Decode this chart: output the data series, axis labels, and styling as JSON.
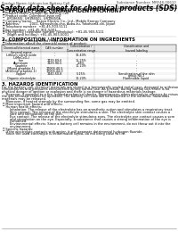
{
  "header_left": "Product Name: Lithium Ion Battery Cell",
  "header_right": "Substance Number: MRF48-00610\nEstablished / Revision: Dec.7.2010",
  "title": "Safety data sheet for chemical products (SDS)",
  "section1_title": "1. PRODUCT AND COMPANY IDENTIFICATION",
  "section1_lines": [
    " ・ Product name: Lithium Ion Battery Cell",
    " ・ Product code: Cylindrical-type cell",
    "     UR18650J, UR18650L, UR18650A",
    " ・ Company name:    Sanyo Electric Co., Ltd., Mobile Energy Company",
    " ・ Address:          2001, Kamoshida-cho, Aoba-ku, Yokohama-shi, Japan",
    " ・ Telephone number:  +81-45-903-5111",
    " ・ Fax number:  +81-45-901-5001",
    " ・ Emergency telephone number (Weekday): +81-45-903-5111",
    "     (Night and holiday): +81-45-903-5001"
  ],
  "section2_title": "2. COMPOSITION / INFORMATION ON INGREDIENTS",
  "section2_sub": " ・ Substance or preparation: Preparation",
  "section2_sub2": " ・ Information about the chemical nature of product:",
  "table_headers": [
    "Chemical/chemical name",
    "CAS number",
    "Concentration /\nConcentration range",
    "Classification and\nhazard labeling"
  ],
  "section3_title": "3. HAZARDS IDENTIFICATION",
  "section3_lines": [
    "For the battery cell, chemical materials are stored in a hermetically sealed metal case, designed to withstand",
    "temperatures and pressures encountered during normal use. As a result, during normal use, there is no",
    "physical danger of ignition or explosion and there is no danger of hazardous materials leakage.",
    "    However, if exposed to a fire, added mechanical shocks, decomposes, when electrolyte releases by misuse,",
    "the gas released cannot be operated. The battery cell case will be breached of the extreme, hazardous",
    "materials may be released.",
    "    Moreover, if heated strongly by the surrounding fire, some gas may be emitted."
  ],
  "most_important": " ・ Most important hazard and effects:",
  "health_header": "    Human health effects:",
  "health_lines": [
    "        Inhalation: The release of the electrolyte has an anesthetic action and stimulates a respiratory tract.",
    "        Skin contact: The release of the electrolyte stimulates a skin. The electrolyte skin contact causes a",
    "        sore and stimulation on the skin.",
    "        Eye contact: The release of the electrolyte stimulates eyes. The electrolyte eye contact causes a sore",
    "        and stimulation on the eye. Especially, a substance that causes a strong inflammation of the eye is",
    "        contained.",
    "        Environmental effects: Since a battery cell remains in the environment, do not throw out it into the",
    "        environment."
  ],
  "specific_header": " ・ Specific hazards:",
  "specific_lines": [
    "    If the electrolyte contacts with water, it will generate detrimental hydrogen fluoride.",
    "    Since the used electrolyte is inflammable liquid, do not bring close to fire."
  ],
  "table_rows": [
    [
      "Several name",
      "-",
      "",
      ""
    ],
    [
      "Lithium cobalt oxide",
      "-",
      "30-40%",
      "-"
    ],
    [
      "(LiMnCoO₂)",
      "",
      "",
      ""
    ],
    [
      "Iron",
      "7439-89-6",
      "15-25%",
      "-"
    ],
    [
      "Aluminum",
      "7429-90-5",
      "2-8%",
      "-"
    ],
    [
      "Graphite",
      "",
      "10-20%",
      "-"
    ],
    [
      "(Mixed graphite-1)",
      "17068-40-5",
      "",
      "-"
    ],
    [
      "(Artificial graphite-1)",
      "17068-44-0",
      "",
      "-"
    ],
    [
      "Copper",
      "7440-50-8",
      "5-15%",
      "Sensitization of the skin"
    ],
    [
      "",
      "",
      "",
      "group No.2"
    ],
    [
      "Organic electrolyte",
      "-",
      "10-20%",
      "Flammable liquid"
    ]
  ],
  "bg_color": "#ffffff",
  "text_color": "#000000"
}
